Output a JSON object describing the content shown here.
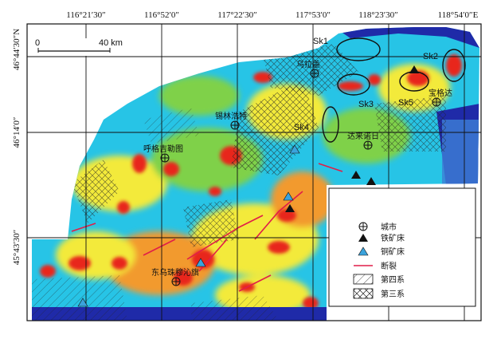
{
  "colors": {
    "high": "#e8261c",
    "orange": "#f29a2e",
    "yellow": "#f3ea3a",
    "green": "#7fd14a",
    "cyan": "#27c4e6",
    "blue_light": "#3d7fd6",
    "blue_dark": "#1f2aa8",
    "fault": "#e11d48",
    "copper": "#3aa3dc"
  },
  "graticule": {
    "lon_labels": [
      "116°21′30″",
      "116°52′0″",
      "117°22′30″",
      "117°53′0″",
      "118°23′30″",
      "118°54′0″E"
    ],
    "lat_labels": [
      "46°44′30″N",
      "46°14′0″",
      "45°43′30″"
    ]
  },
  "scale_bar": {
    "start": "0",
    "end": "40 km"
  },
  "zones": [
    {
      "id": "Sk1",
      "label": "Sk1"
    },
    {
      "id": "Sk2",
      "label": "Sk2"
    },
    {
      "id": "Sk3",
      "label": "Sk3"
    },
    {
      "id": "Sk4",
      "label": "Sk4"
    },
    {
      "id": "Sk5",
      "label": "Sk5"
    }
  ],
  "cities": [
    {
      "name": "乌拉盖"
    },
    {
      "name": "宝格达"
    },
    {
      "name": "锡林浩特"
    },
    {
      "name": "呼格吉勒图"
    },
    {
      "name": "东乌珠穆沁旗"
    },
    {
      "name": "达来诺日"
    }
  ],
  "legend": {
    "items": [
      {
        "symbol": "city-icon",
        "label": "城市"
      },
      {
        "symbol": "iron-deposit-icon",
        "label": "铁矿床"
      },
      {
        "symbol": "copper-deposit-icon",
        "label": "铜矿床"
      },
      {
        "symbol": "fault-line-icon",
        "label": "断裂"
      },
      {
        "symbol": "quaternary-hatch-icon",
        "label": "第四系"
      },
      {
        "symbol": "tertiary-crosshatch-icon",
        "label": "第三系"
      }
    ]
  }
}
